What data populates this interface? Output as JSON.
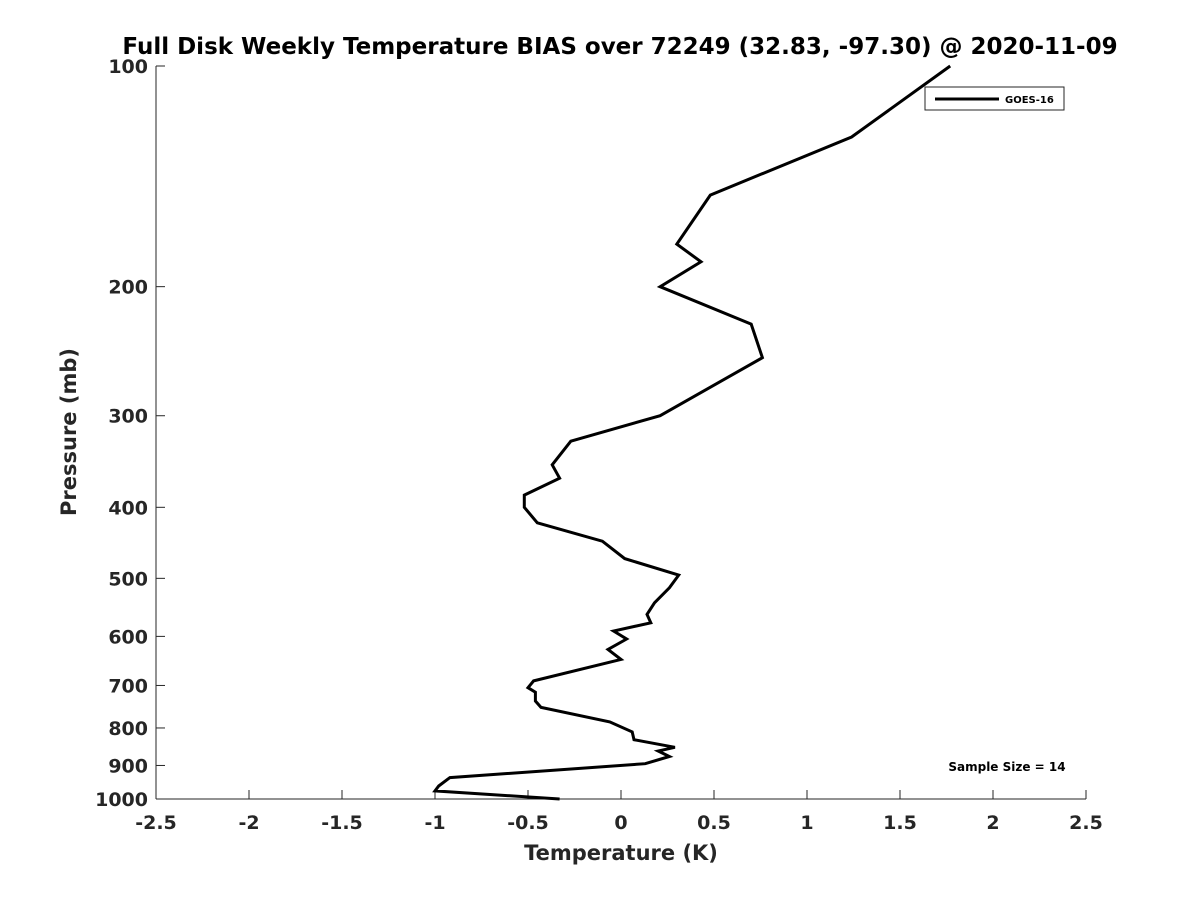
{
  "chart_data": {
    "type": "line",
    "title": "Full Disk Weekly Temperature BIAS over 72249 (32.83, -97.30) @ 2020-11-09",
    "xlabel": "Temperature (K)",
    "ylabel": "Pressure (mb)",
    "xlim": [
      -2.5,
      2.5
    ],
    "ylim": [
      1000,
      100
    ],
    "y_scale": "log",
    "x_ticks": [
      "-2.5",
      "-2",
      "-1.5",
      "-1",
      "-0.5",
      "0",
      "0.5",
      "1",
      "1.5",
      "2",
      "2.5"
    ],
    "y_ticks": [
      "100",
      "200",
      "300",
      "400",
      "500",
      "600",
      "700",
      "800",
      "900",
      "1000"
    ],
    "grid": false,
    "legend_position": "top-right",
    "annotation": "Sample Size = 14",
    "color": "#000000",
    "series": [
      {
        "name": "GOES-16",
        "points": [
          {
            "t": 1.77,
            "p": 100
          },
          {
            "t": 1.24,
            "p": 125
          },
          {
            "t": 0.48,
            "p": 150
          },
          {
            "t": 0.3,
            "p": 175
          },
          {
            "t": 0.43,
            "p": 185
          },
          {
            "t": 0.21,
            "p": 200
          },
          {
            "t": 0.7,
            "p": 225
          },
          {
            "t": 0.76,
            "p": 250
          },
          {
            "t": 0.21,
            "p": 300
          },
          {
            "t": -0.27,
            "p": 325
          },
          {
            "t": -0.37,
            "p": 350
          },
          {
            "t": -0.33,
            "p": 365
          },
          {
            "t": -0.52,
            "p": 385
          },
          {
            "t": -0.52,
            "p": 400
          },
          {
            "t": -0.45,
            "p": 420
          },
          {
            "t": -0.1,
            "p": 445
          },
          {
            "t": 0.02,
            "p": 470
          },
          {
            "t": 0.31,
            "p": 495
          },
          {
            "t": 0.26,
            "p": 515
          },
          {
            "t": 0.18,
            "p": 540
          },
          {
            "t": 0.14,
            "p": 560
          },
          {
            "t": 0.16,
            "p": 575
          },
          {
            "t": -0.04,
            "p": 590
          },
          {
            "t": 0.03,
            "p": 605
          },
          {
            "t": -0.07,
            "p": 625
          },
          {
            "t": 0.0,
            "p": 645
          },
          {
            "t": -0.47,
            "p": 690
          },
          {
            "t": -0.5,
            "p": 705
          },
          {
            "t": -0.46,
            "p": 715
          },
          {
            "t": -0.46,
            "p": 735
          },
          {
            "t": -0.43,
            "p": 750
          },
          {
            "t": -0.06,
            "p": 785
          },
          {
            "t": 0.06,
            "p": 810
          },
          {
            "t": 0.07,
            "p": 830
          },
          {
            "t": 0.29,
            "p": 850
          },
          {
            "t": 0.2,
            "p": 860
          },
          {
            "t": 0.26,
            "p": 875
          },
          {
            "t": 0.13,
            "p": 895
          },
          {
            "t": -0.92,
            "p": 935
          },
          {
            "t": -0.98,
            "p": 960
          },
          {
            "t": -1.0,
            "p": 975
          },
          {
            "t": -0.33,
            "p": 1000
          }
        ]
      }
    ]
  }
}
